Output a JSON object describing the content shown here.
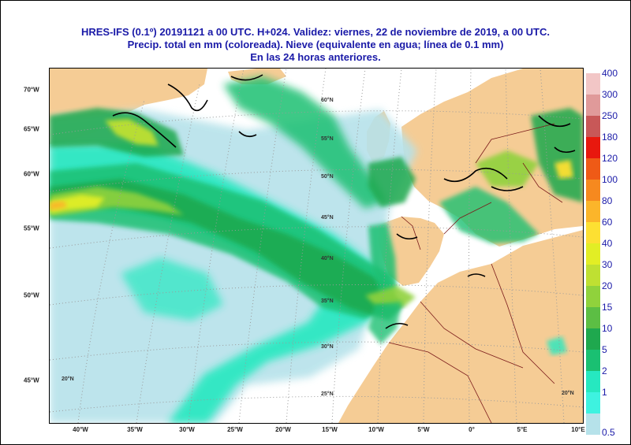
{
  "title": {
    "line1": "HRES-IFS (0.1º) 20191121 a 00 UTC.  H+024. Validez: viernes, 22 de noviembre de 2019,  a 00 UTC.",
    "line2": "Precip. total en mm (coloreada). Nieve (equivalente en agua; línea de 0.1 mm)",
    "line3": "En las 24 horas anteriores."
  },
  "map": {
    "colors": {
      "land": "#f5cc95",
      "ocean": "#ffffff",
      "border": "#7a1a1a",
      "grid": "#9a9a9a",
      "snow": "#000000"
    },
    "lon_labels": [
      "40°W",
      "35°W",
      "30°W",
      "25°W",
      "20°W",
      "15°W",
      "10°W",
      "5°W",
      "0°",
      "5°E",
      "10°E"
    ],
    "lat_labels": [
      "70°W",
      "65°W",
      "60°W",
      "55°W",
      "50°W",
      "45°W"
    ],
    "inner_labels": [
      "60°N",
      "55°N",
      "50°N",
      "45°N",
      "40°N",
      "35°N",
      "30°N",
      "25°N",
      "20°N",
      "20°N"
    ]
  },
  "legend": {
    "labels": [
      "400",
      "300",
      "250",
      "180",
      "120",
      "100",
      "80",
      "60",
      "40",
      "30",
      "20",
      "15",
      "10",
      "5",
      "2",
      "1",
      "0.5"
    ],
    "colors": [
      "#f2c6c6",
      "#e09a9a",
      "#c85858",
      "#e8180e",
      "#ef5a16",
      "#f6891f",
      "#fbb52a",
      "#fde032",
      "#e2ee25",
      "#bfe032",
      "#90d23c",
      "#5cbe44",
      "#1fa84e",
      "#1ac072",
      "#26e8c0",
      "#3ef2e0",
      "#b6e2ea"
    ]
  }
}
